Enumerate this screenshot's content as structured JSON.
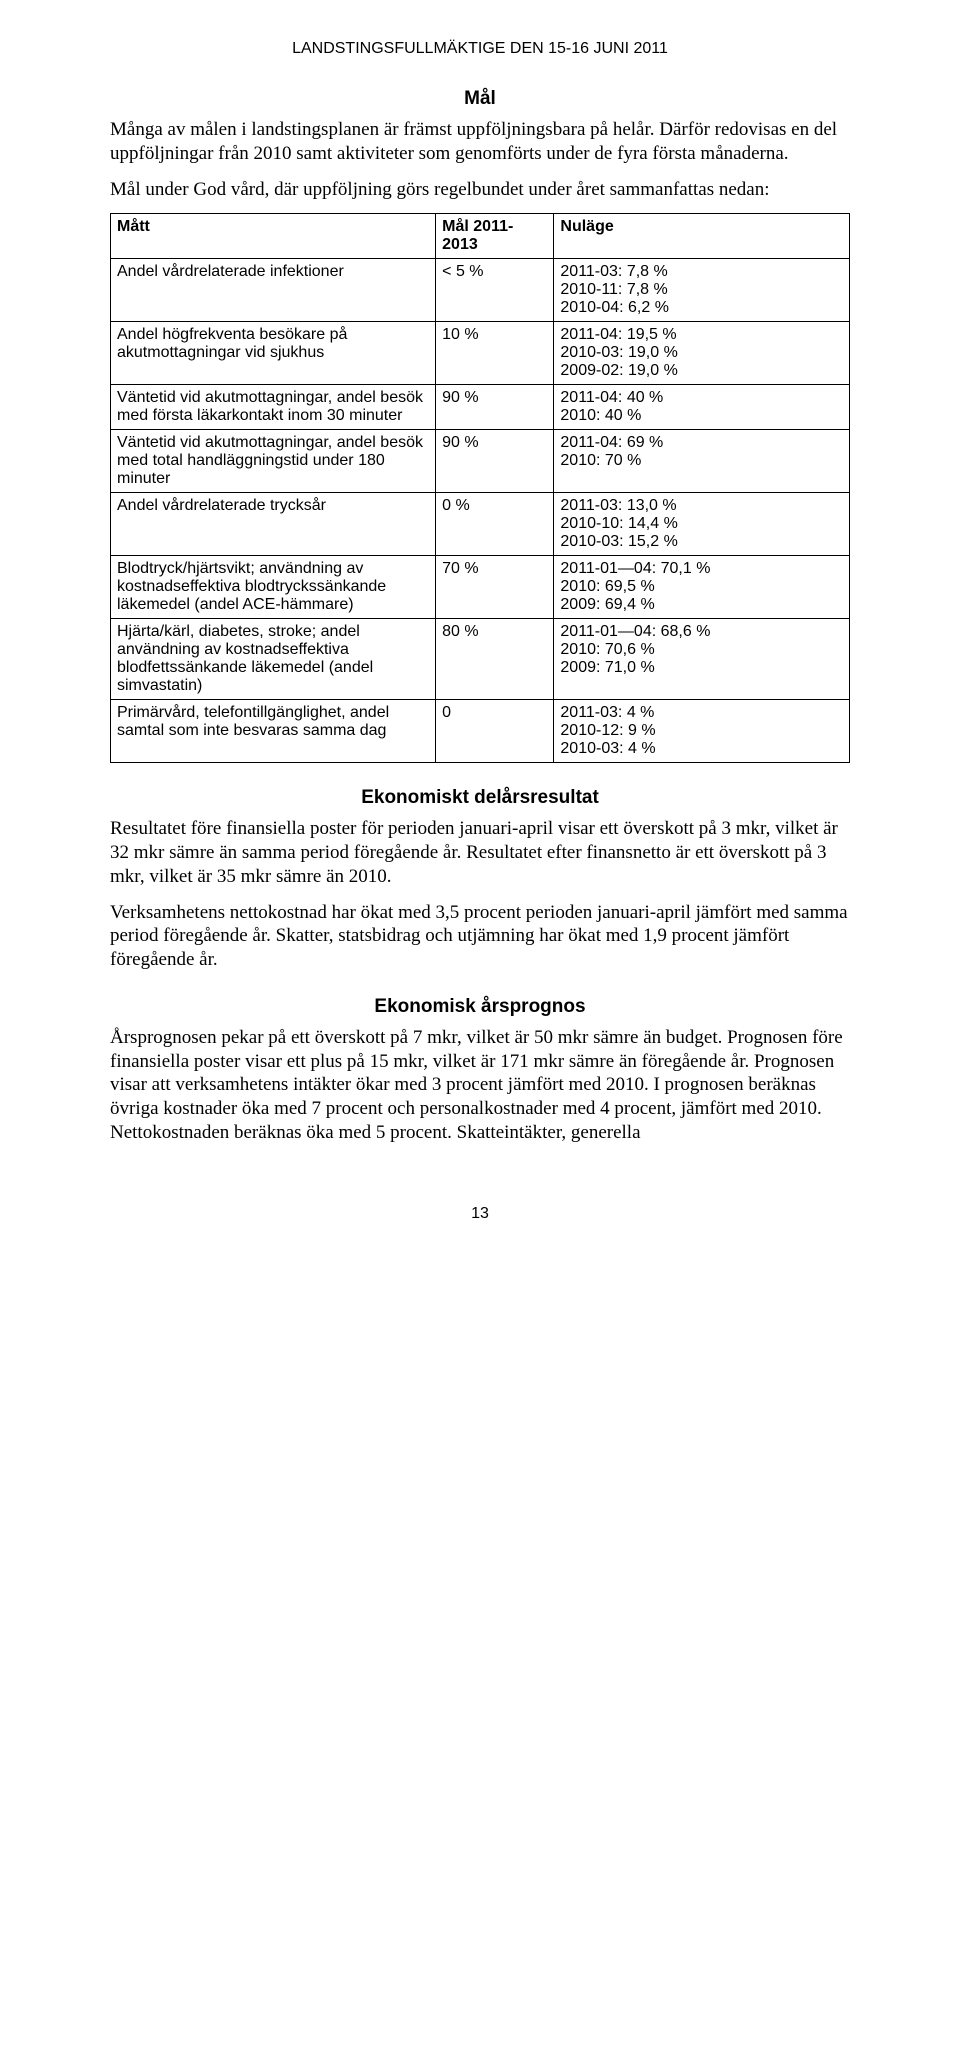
{
  "header": "LANDSTINGSFULLMÄKTIGE DEN 15-16 JUNI 2011",
  "section_mal": {
    "title": "Mål",
    "para1": "Många av målen i landstingsplanen är främst uppföljningsbara på helår. Därför redovisas en del uppföljningar från 2010 samt aktiviteter som genomförts under de fyra första månaderna.",
    "para2": "Mål under God vård, där uppföljning görs regelbundet under året sammanfattas nedan:"
  },
  "table": {
    "columns": [
      "Mått",
      "Mål 2011-2013",
      "Nuläge"
    ],
    "rows": [
      [
        "Andel vårdrelaterade infektioner",
        "< 5 %",
        "2011-03: 7,8 %\n2010-11: 7,8 %\n2010-04: 6,2 %"
      ],
      [
        "Andel högfrekventa besökare på akutmottagningar vid sjukhus",
        "10 %",
        "2011-04: 19,5 %\n2010-03: 19,0 %\n2009-02: 19,0 %"
      ],
      [
        "Väntetid vid akutmottagningar, andel besök med första läkarkontakt inom 30 minuter",
        "90 %",
        "2011-04: 40 %\n2010: 40 %"
      ],
      [
        "Väntetid vid akutmottagningar, andel besök med total handläggningstid under 180 minuter",
        "90 %",
        "2011-04: 69 %\n2010: 70 %"
      ],
      [
        "Andel vårdrelaterade trycksår",
        "0 %",
        "2011-03: 13,0 %\n2010-10: 14,4 %\n2010-03: 15,2 %"
      ],
      [
        "Blodtryck/hjärtsvikt; användning av kostnadseffektiva blodtryckssänkande läkemedel (andel ACE-hämmare)",
        "70 %",
        "2011-01—04: 70,1 %\n2010: 69,5 %\n2009: 69,4 %"
      ],
      [
        "Hjärta/kärl, diabetes, stroke; andel användning av kostnadseffektiva blodfettssänkande läkemedel (andel simvastatin)",
        "80 %",
        "2011-01—04: 68,6 %\n2010: 70,6 %\n2009: 71,0 %"
      ],
      [
        "Primärvård, telefontillgänglighet, andel samtal som inte besvaras samma dag",
        "0",
        "2011-03: 4 %\n2010-12: 9 %\n2010-03: 4 %"
      ]
    ]
  },
  "section_ekon_del": {
    "title": "Ekonomiskt delårsresultat",
    "para1": "Resultatet före finansiella poster för perioden januari-april visar ett överskott på 3 mkr, vilket är 32 mkr sämre än samma period föregående år. Resultatet efter finansnetto är ett överskott på 3 mkr, vilket är 35 mkr sämre än 2010.",
    "para2": "Verksamhetens nettokostnad har ökat med 3,5 procent perioden januari-april jämfört med samma period föregående år. Skatter, statsbidrag och utjämning har ökat med 1,9 procent jämfört föregående år."
  },
  "section_ekon_prog": {
    "title": "Ekonomisk årsprognos",
    "para1": "Årsprognosen pekar på ett överskott på 7 mkr, vilket är 50 mkr sämre än budget. Prognosen före finansiella poster visar ett plus på 15 mkr, vilket är 171 mkr sämre än föregående år. Prognosen visar att verksamhetens intäkter ökar med 3 procent jämfört med 2010. I prognosen beräknas övriga kostnader öka med 7 procent och personalkostnader med 4 procent, jämfört med 2010. Nettokostnaden beräknas öka med 5 procent. Skatteintäkter, generella"
  },
  "page_number": "13"
}
